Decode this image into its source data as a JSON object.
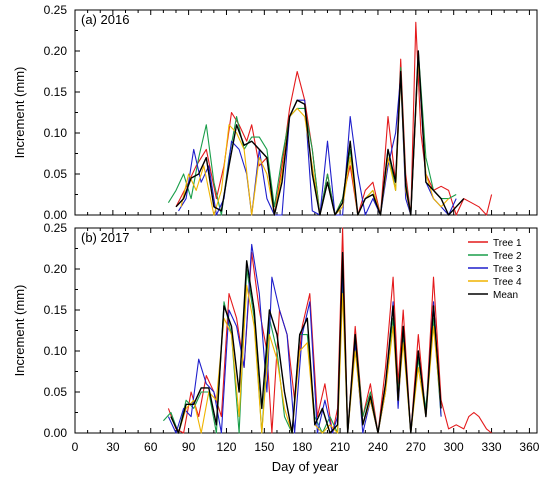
{
  "xlabel": "Day of year",
  "colors": {
    "Tree 1": "#e41a1c",
    "Tree 2": "#1a9e4a",
    "Tree 3": "#1f1fcc",
    "Tree 4": "#f0b400",
    "Mean": "#000000"
  },
  "chart_data": [
    {
      "type": "line",
      "panel_label": "(a)   2016",
      "ylabel": "Increment (mm)",
      "xlim": [
        0,
        366
      ],
      "ylim": [
        0,
        0.25
      ],
      "xticks": [
        "0",
        "30",
        "60",
        "90",
        "120",
        "150",
        "180",
        "210",
        "240",
        "270",
        "300",
        "330",
        "360"
      ],
      "yticks": [
        "0.00",
        "0.05",
        "0.10",
        "0.15",
        "0.20",
        "0.25"
      ],
      "series": [
        {
          "name": "Tree 1",
          "x": [
            80,
            90,
            96,
            104,
            112,
            118,
            124,
            130,
            136,
            140,
            146,
            152,
            158,
            164,
            170,
            176,
            182,
            188,
            194,
            200,
            206,
            212,
            218,
            224,
            230,
            236,
            242,
            248,
            254,
            258,
            262,
            266,
            270,
            274,
            278,
            284,
            290,
            296,
            302,
            308,
            314,
            320,
            326,
            330
          ],
          "y": [
            0.01,
            0.04,
            0.06,
            0.08,
            0.02,
            0.06,
            0.125,
            0.11,
            0.09,
            0.11,
            0.06,
            0.07,
            0.0,
            0.06,
            0.13,
            0.175,
            0.14,
            0.08,
            0.0,
            0.05,
            0.0,
            0.02,
            0.06,
            0.0,
            0.03,
            0.04,
            0.0,
            0.12,
            0.04,
            0.19,
            0.05,
            0.0,
            0.235,
            0.1,
            0.05,
            0.03,
            0.035,
            0.03,
            0.0,
            0.02,
            0.015,
            0.01,
            0.0,
            0.025
          ]
        },
        {
          "name": "Tree 2",
          "x": [
            74,
            80,
            86,
            92,
            98,
            104,
            110,
            116,
            122,
            128,
            134,
            140,
            146,
            152,
            158,
            164,
            170,
            176,
            182,
            188,
            194,
            200,
            206,
            212,
            218,
            224,
            230,
            236,
            242,
            248,
            254,
            258,
            262,
            266,
            272,
            278,
            284,
            290,
            296,
            302
          ],
          "y": [
            0.015,
            0.03,
            0.05,
            0.02,
            0.07,
            0.11,
            0.04,
            0.0,
            0.07,
            0.12,
            0.08,
            0.095,
            0.095,
            0.08,
            0.01,
            0.07,
            0.12,
            0.13,
            0.13,
            0.08,
            0.0,
            0.05,
            0.0,
            0.02,
            0.08,
            0.0,
            0.02,
            0.03,
            0.0,
            0.08,
            0.03,
            0.18,
            0.04,
            0.0,
            0.2,
            0.07,
            0.03,
            0.02,
            0.02,
            0.025
          ]
        },
        {
          "name": "Tree 3",
          "x": [
            82,
            88,
            94,
            100,
            106,
            112,
            118,
            124,
            130,
            136,
            140,
            146,
            152,
            158,
            164,
            170,
            176,
            182,
            188,
            194,
            200,
            206,
            212,
            218,
            224,
            230,
            236,
            242,
            248,
            254,
            258,
            262,
            266,
            272,
            278,
            284,
            290,
            296,
            302
          ],
          "y": [
            0.005,
            0.02,
            0.08,
            0.04,
            0.06,
            0.0,
            0.02,
            0.09,
            0.08,
            0.05,
            0.0,
            0.08,
            0.02,
            0.0,
            0.0,
            0.12,
            0.14,
            0.14,
            0.005,
            0.0,
            0.09,
            0.0,
            0.0,
            0.12,
            0.05,
            0.0,
            0.02,
            0.0,
            0.06,
            0.1,
            0.17,
            0.02,
            0.0,
            0.19,
            0.04,
            0.02,
            0.01,
            0.0,
            0.02
          ]
        },
        {
          "name": "Tree 4",
          "x": [
            84,
            90,
            96,
            102,
            110,
            116,
            122,
            128,
            134,
            140,
            146,
            152,
            158,
            164,
            170,
            176,
            182,
            188,
            194,
            200,
            206,
            212,
            218,
            224,
            230,
            236,
            242,
            248,
            254,
            258,
            262,
            266,
            272,
            278,
            284,
            290,
            296
          ],
          "y": [
            0.01,
            0.05,
            0.03,
            0.06,
            0.0,
            0.03,
            0.11,
            0.1,
            0.08,
            0.0,
            0.07,
            0.05,
            0.0,
            0.05,
            0.12,
            0.13,
            0.12,
            0.06,
            0.0,
            0.04,
            0.0,
            0.01,
            0.07,
            0.0,
            0.02,
            0.03,
            0.0,
            0.07,
            0.03,
            0.17,
            0.03,
            0.0,
            0.19,
            0.05,
            0.02,
            0.01,
            0.02
          ]
        },
        {
          "name": "Mean",
          "x": [
            80,
            86,
            92,
            98,
            104,
            110,
            116,
            122,
            128,
            134,
            140,
            146,
            152,
            158,
            164,
            170,
            176,
            182,
            188,
            194,
            200,
            206,
            212,
            218,
            224,
            230,
            236,
            242,
            248,
            254,
            258,
            262,
            266,
            272,
            278,
            284,
            290,
            296,
            302,
            308
          ],
          "y": [
            0.01,
            0.02,
            0.045,
            0.05,
            0.07,
            0.01,
            0.005,
            0.06,
            0.11,
            0.085,
            0.09,
            0.08,
            0.07,
            0.0,
            0.04,
            0.12,
            0.14,
            0.135,
            0.05,
            0.0,
            0.04,
            0.0,
            0.015,
            0.09,
            0.0,
            0.02,
            0.025,
            0.0,
            0.08,
            0.04,
            0.175,
            0.035,
            0.0,
            0.2,
            0.04,
            0.03,
            0.02,
            0.0,
            0.01,
            0.02
          ]
        }
      ]
    },
    {
      "type": "line",
      "panel_label": "(b)   2017",
      "ylabel": "Increment (mm)",
      "xlim": [
        0,
        366
      ],
      "ylim": [
        0,
        0.25
      ],
      "xticks": [
        "0",
        "30",
        "60",
        "90",
        "120",
        "150",
        "180",
        "210",
        "240",
        "270",
        "300",
        "330",
        "360"
      ],
      "yticks": [
        "0.00",
        "0.05",
        "0.10",
        "0.15",
        "0.20",
        "0.25"
      ],
      "legend": [
        "Tree 1",
        "Tree 2",
        "Tree 3",
        "Tree 4",
        "Mean"
      ],
      "series": [
        {
          "name": "Tree 1",
          "x": [
            74,
            80,
            86,
            92,
            98,
            104,
            110,
            116,
            122,
            128,
            134,
            140,
            146,
            152,
            156,
            162,
            168,
            174,
            180,
            186,
            192,
            198,
            204,
            208,
            212,
            216,
            222,
            228,
            234,
            240,
            246,
            252,
            256,
            260,
            266,
            272,
            278,
            284,
            290,
            296,
            302,
            308,
            312,
            316,
            320,
            326,
            330
          ],
          "y": [
            0.03,
            0.005,
            0.0,
            0.05,
            0.02,
            0.07,
            0.05,
            0.02,
            0.17,
            0.14,
            0.08,
            0.22,
            0.15,
            0.1,
            0.0,
            0.15,
            0.12,
            0.04,
            0.13,
            0.17,
            0.02,
            0.06,
            0.0,
            0.03,
            0.25,
            0.0,
            0.13,
            0.02,
            0.06,
            0.0,
            0.08,
            0.19,
            0.06,
            0.15,
            0.0,
            0.12,
            0.02,
            0.19,
            0.04,
            0.005,
            0.01,
            0.005,
            0.02,
            0.025,
            0.02,
            0.005,
            0.0
          ]
        },
        {
          "name": "Tree 2",
          "x": [
            70,
            76,
            82,
            88,
            94,
            100,
            106,
            112,
            118,
            124,
            130,
            136,
            142,
            148,
            154,
            160,
            166,
            172,
            178,
            184,
            190,
            196,
            202,
            208,
            212,
            216,
            222,
            228,
            234,
            240,
            246,
            252,
            256,
            260,
            266,
            272,
            278,
            284,
            290
          ],
          "y": [
            0.015,
            0.025,
            0.0,
            0.04,
            0.03,
            0.05,
            0.05,
            0.0,
            0.16,
            0.12,
            0.0,
            0.2,
            0.14,
            0.0,
            0.14,
            0.1,
            0.02,
            0.0,
            0.12,
            0.12,
            0.02,
            0.0,
            0.02,
            0.0,
            0.19,
            0.0,
            0.12,
            0.02,
            0.05,
            0.0,
            0.06,
            0.14,
            0.05,
            0.12,
            0.0,
            0.09,
            0.03,
            0.14,
            0.02
          ]
        },
        {
          "name": "Tree 3",
          "x": [
            74,
            80,
            86,
            92,
            98,
            104,
            110,
            116,
            122,
            128,
            134,
            140,
            146,
            152,
            156,
            162,
            168,
            174,
            180,
            186,
            192,
            198,
            204,
            208,
            212,
            216,
            222,
            228,
            234,
            240,
            246,
            252,
            256,
            260,
            266,
            272,
            278,
            284,
            290
          ],
          "y": [
            0.02,
            0.0,
            0.03,
            0.02,
            0.09,
            0.06,
            0.05,
            0.0,
            0.15,
            0.13,
            0.08,
            0.23,
            0.17,
            0.05,
            0.19,
            0.15,
            0.12,
            0.0,
            0.12,
            0.16,
            0.0,
            0.04,
            0.0,
            0.02,
            0.2,
            0.0,
            0.11,
            0.0,
            0.04,
            0.0,
            0.05,
            0.16,
            0.03,
            0.13,
            0.0,
            0.1,
            0.02,
            0.16,
            0.02
          ]
        },
        {
          "name": "Tree 4",
          "x": [
            76,
            82,
            88,
            94,
            100,
            106,
            112,
            118,
            124,
            130,
            136,
            142,
            148,
            154,
            160,
            166,
            172,
            178,
            184,
            190,
            196,
            202,
            208,
            212,
            216,
            222,
            228,
            234,
            240,
            246,
            252,
            256,
            260,
            266,
            272,
            278,
            284,
            290
          ],
          "y": [
            0.02,
            0.0,
            0.03,
            0.04,
            0.0,
            0.05,
            0.04,
            0.14,
            0.12,
            0.02,
            0.18,
            0.13,
            0.0,
            0.12,
            0.09,
            0.03,
            0.0,
            0.1,
            0.11,
            0.01,
            0.0,
            0.01,
            0.0,
            0.17,
            0.0,
            0.1,
            0.01,
            0.04,
            0.0,
            0.05,
            0.13,
            0.04,
            0.11,
            0.0,
            0.08,
            0.02,
            0.13,
            0.03
          ]
        },
        {
          "name": "Mean",
          "x": [
            76,
            82,
            88,
            94,
            100,
            106,
            112,
            118,
            124,
            130,
            136,
            142,
            148,
            154,
            160,
            166,
            172,
            178,
            184,
            190,
            196,
            202,
            208,
            212,
            216,
            222,
            228,
            234,
            240,
            246,
            252,
            256,
            260,
            266,
            272,
            278,
            284,
            290
          ],
          "y": [
            0.02,
            0.0,
            0.035,
            0.035,
            0.055,
            0.055,
            0.01,
            0.155,
            0.13,
            0.05,
            0.21,
            0.15,
            0.03,
            0.15,
            0.12,
            0.05,
            0.0,
            0.12,
            0.14,
            0.01,
            0.03,
            0.0,
            0.01,
            0.22,
            0.0,
            0.12,
            0.01,
            0.045,
            0.0,
            0.06,
            0.155,
            0.04,
            0.13,
            0.0,
            0.1,
            0.02,
            0.155,
            0.03
          ]
        }
      ]
    }
  ]
}
